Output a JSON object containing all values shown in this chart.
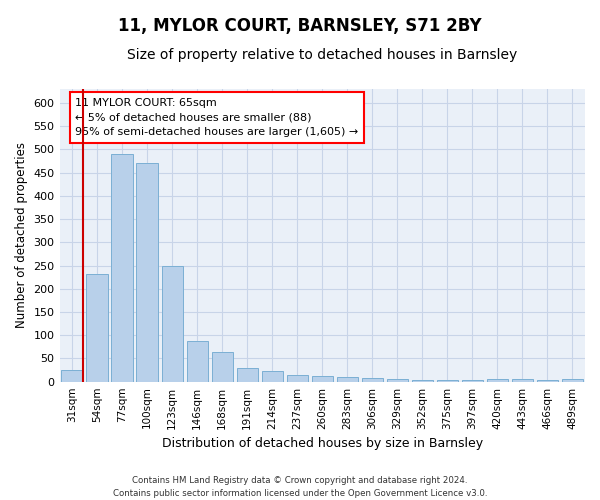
{
  "title": "11, MYLOR COURT, BARNSLEY, S71 2BY",
  "subtitle": "Size of property relative to detached houses in Barnsley",
  "xlabel": "Distribution of detached houses by size in Barnsley",
  "ylabel": "Number of detached properties",
  "categories": [
    "31sqm",
    "54sqm",
    "77sqm",
    "100sqm",
    "123sqm",
    "146sqm",
    "168sqm",
    "191sqm",
    "214sqm",
    "237sqm",
    "260sqm",
    "283sqm",
    "306sqm",
    "329sqm",
    "352sqm",
    "375sqm",
    "397sqm",
    "420sqm",
    "443sqm",
    "466sqm",
    "489sqm"
  ],
  "values": [
    25,
    232,
    490,
    470,
    248,
    88,
    63,
    30,
    23,
    14,
    12,
    10,
    8,
    5,
    4,
    4,
    4,
    6,
    5,
    4,
    5
  ],
  "bar_color": "#b8d0ea",
  "bar_edge_color": "#7bafd4",
  "grid_color": "#c8d4e8",
  "background_color": "#eaf0f8",
  "annotation_line1": "11 MYLOR COURT: 65sqm",
  "annotation_line2": "← 5% of detached houses are smaller (88)",
  "annotation_line3": "95% of semi-detached houses are larger (1,605) →",
  "red_line_x": 0.43,
  "ylim_max": 630,
  "yticks": [
    0,
    50,
    100,
    150,
    200,
    250,
    300,
    350,
    400,
    450,
    500,
    550,
    600
  ],
  "footer_line1": "Contains HM Land Registry data © Crown copyright and database right 2024.",
  "footer_line2": "Contains public sector information licensed under the Open Government Licence v3.0."
}
